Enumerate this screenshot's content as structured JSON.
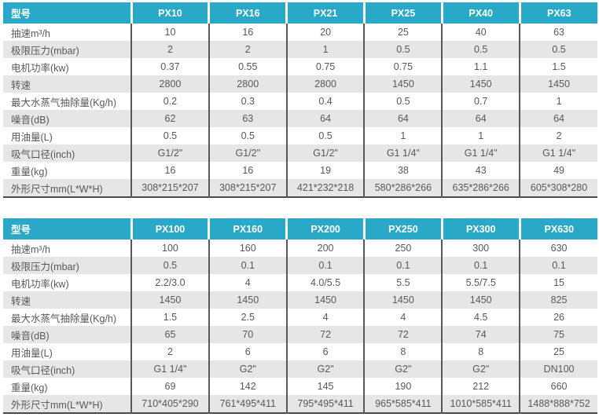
{
  "colors": {
    "header_bg": "#29a8c7",
    "header_text": "#ffffff",
    "alt_row_bg": "#e6e6e6",
    "body_text": "#58585a",
    "column_divider": "#58585a",
    "table_bottom_border": "#4a4a4a"
  },
  "header_label": "型号",
  "row_labels": [
    "抽速m³/h",
    "极限压力(mbar)",
    "电机功率(kw)",
    "转速",
    "最大水蒸气抽除量(Kg/h)",
    "噪音(dB)",
    "用油量(L)",
    "吸气口径(inch)",
    "重量(kg)",
    "外形尺寸mm(L*W*H)"
  ],
  "tables": [
    {
      "models": [
        "PX10",
        "PX16",
        "PX21",
        "PX25",
        "PX40",
        "PX63"
      ],
      "rows": [
        {
          "label": "抽速m³/h",
          "values": [
            "10",
            "16",
            "20",
            "25",
            "40",
            "63"
          ]
        },
        {
          "label": "极限压力(mbar)",
          "values": [
            "2",
            "2",
            "1",
            "0.5",
            "0.5",
            "0.5"
          ]
        },
        {
          "label": "电机功率(kw)",
          "values": [
            "0.37",
            "0.55",
            "0.75",
            "0.75",
            "1.1",
            "1.5"
          ]
        },
        {
          "label": "转速",
          "values": [
            "2800",
            "2800",
            "2800",
            "1450",
            "1450",
            "1450"
          ]
        },
        {
          "label": "最大水蒸气抽除量(Kg/h)",
          "values": [
            "0.2",
            "0.3",
            "0.4",
            "0.5",
            "0.7",
            "1"
          ]
        },
        {
          "label": "噪音(dB)",
          "values": [
            "62",
            "63",
            "64",
            "64",
            "64",
            "64"
          ]
        },
        {
          "label": "用油量(L)",
          "values": [
            "0.5",
            "0.5",
            "0.5",
            "1",
            "1",
            "2"
          ]
        },
        {
          "label": "吸气口径(inch)",
          "values": [
            "G1/2\"",
            "G1/2\"",
            "G1/2\"",
            "G1 1/4\"",
            "G1 1/4\"",
            "G1 1/4\""
          ]
        },
        {
          "label": "重量(kg)",
          "values": [
            "16",
            "16",
            "19",
            "38",
            "43",
            "49"
          ]
        },
        {
          "label": "外形尺寸mm(L*W*H)",
          "values": [
            "308*215*207",
            "308*215*207",
            "421*232*218",
            "580*286*266",
            "635*286*266",
            "605*308*280"
          ]
        }
      ]
    },
    {
      "models": [
        "PX100",
        "PX160",
        "PX200",
        "PX250",
        "PX300",
        "PX630"
      ],
      "rows": [
        {
          "label": "抽速m³/h",
          "values": [
            "100",
            "160",
            "200",
            "250",
            "300",
            "630"
          ]
        },
        {
          "label": "极限压力(mbar)",
          "values": [
            "0.5",
            "0.1",
            "0.1",
            "0.1",
            "0.1",
            "0.1"
          ]
        },
        {
          "label": "电机功率(kw)",
          "values": [
            "2.2/3.0",
            "4",
            "4.0/5.5",
            "5.5",
            "5.5/7.5",
            "15"
          ]
        },
        {
          "label": "转速",
          "values": [
            "1450",
            "1450",
            "1450",
            "1450",
            "1450",
            "825"
          ]
        },
        {
          "label": "最大水蒸气抽除量(Kg/h)",
          "values": [
            "1.5",
            "2.5",
            "4",
            "4",
            "4.5",
            "26"
          ]
        },
        {
          "label": "噪音(dB)",
          "values": [
            "65",
            "70",
            "72",
            "72",
            "74",
            "75"
          ]
        },
        {
          "label": "用油量(L)",
          "values": [
            "2",
            "6",
            "6",
            "8",
            "8",
            "25"
          ]
        },
        {
          "label": "吸气口径(inch)",
          "values": [
            "G1 1/4\"",
            "G2\"",
            "G2\"",
            "G2\"",
            "G2\"",
            "DN100"
          ]
        },
        {
          "label": "重量(kg)",
          "values": [
            "69",
            "142",
            "145",
            "190",
            "212",
            "660"
          ]
        },
        {
          "label": "外形尺寸mm(L*W*H)",
          "values": [
            "710*405*290",
            "761*495*411",
            "795*495*411",
            "965*585*411",
            "1010*585*411",
            "1488*888*752"
          ]
        }
      ]
    }
  ]
}
